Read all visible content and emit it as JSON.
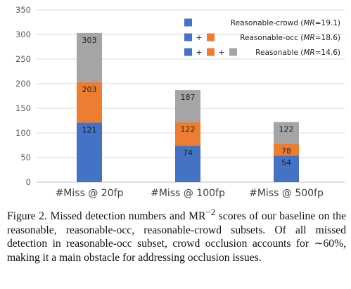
{
  "chart_data": {
    "type": "bar",
    "stacked": true,
    "categories": [
      "#Miss @ 20fp",
      "#Miss @ 100fp",
      "#Miss @ 500fp"
    ],
    "series": [
      {
        "name": "Reasonable-crowd",
        "values": [
          121,
          74,
          54
        ],
        "labels": [
          "121",
          "74",
          "54"
        ],
        "color": "#4472c4"
      },
      {
        "name": "Reasonable-occ",
        "values": [
          82,
          48,
          24
        ],
        "labels": [
          "203",
          "122",
          "78"
        ],
        "color": "#ed7d31"
      },
      {
        "name": "Reasonable",
        "values": [
          100,
          65,
          44
        ],
        "labels": [
          "303",
          "187",
          "122"
        ],
        "color": "#a5a5a5"
      }
    ],
    "yticks": [
      "0",
      "50",
      "100",
      "150",
      "200",
      "250",
      "300",
      "350"
    ],
    "ylim": [
      0,
      350
    ],
    "grid": true,
    "legend_position": "top-right",
    "legend": [
      {
        "label": "Reasonable-crowd",
        "mr": "MR",
        "mr_value": "=19.1)"
      },
      {
        "label": "Reasonable-occ",
        "mr": "MR",
        "mr_value": "=18.6)"
      },
      {
        "label": "Reasonable",
        "mr": "MR",
        "mr_value": "=14.6)"
      }
    ],
    "legend_plus": "+"
  },
  "caption": {
    "part1": "Figure 2. Missed detection numbers and MR",
    "sup": "−2",
    "part2": " scores of our baseline on the reasonable, reasonable-occ, reasonable-crowd subsets. Of all missed detection in reasonable-occ subset, crowd occlusion accounts for ∼60%, making it a main obstacle for addressing occlusion issues."
  }
}
